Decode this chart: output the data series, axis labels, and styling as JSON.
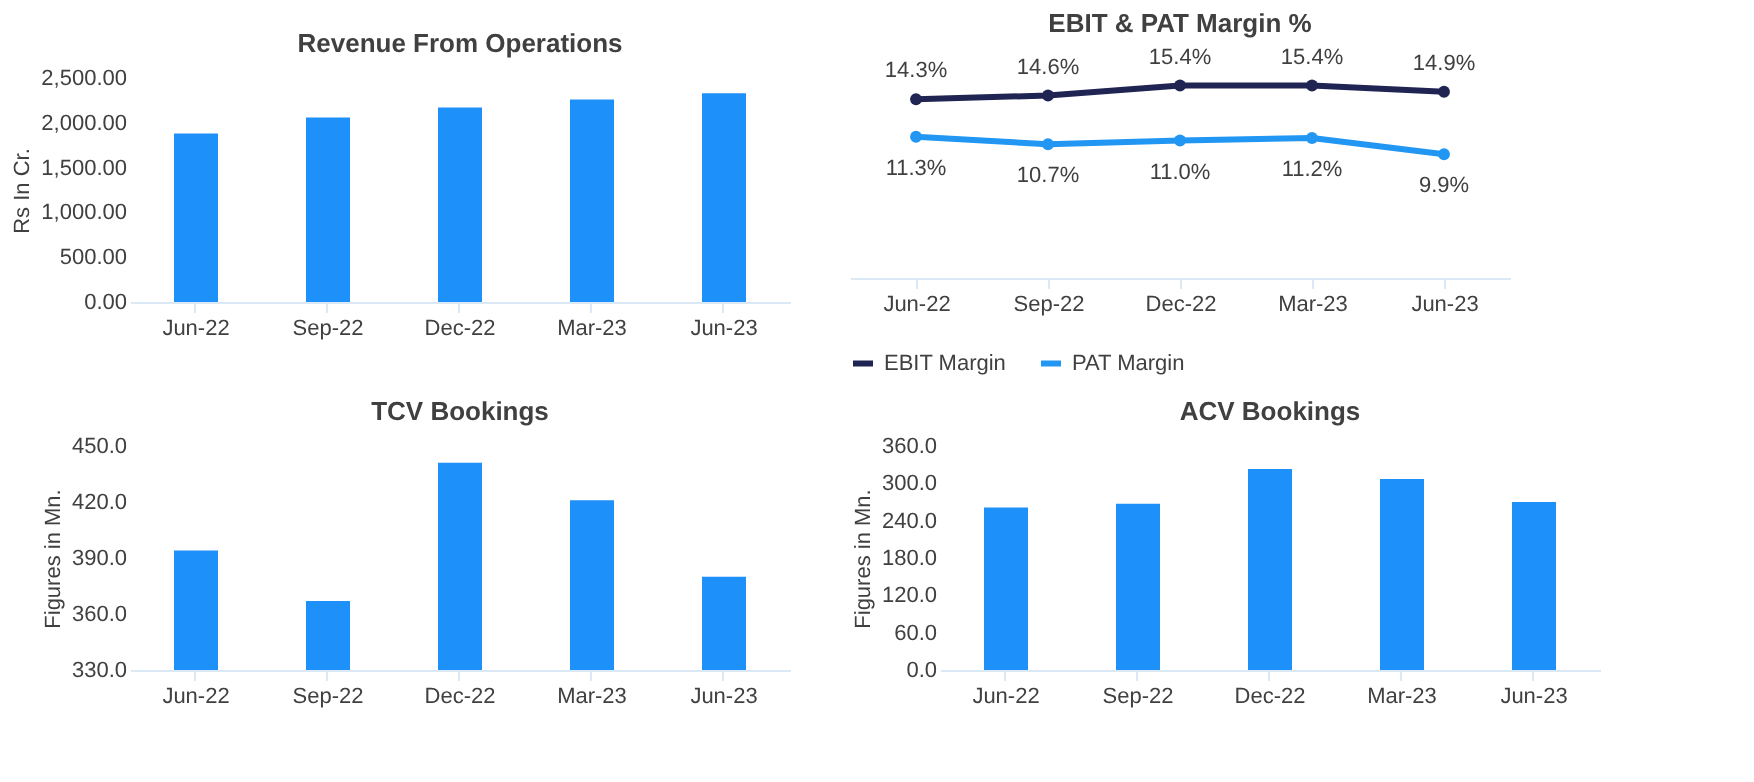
{
  "chart_data": [
    {
      "type": "bar",
      "title": "Revenue From Operations",
      "ylabel": "Rs In Cr.",
      "categories": [
        "Jun-22",
        "Sep-22",
        "Dec-22",
        "Mar-23",
        "Jun-23"
      ],
      "values": [
        1880,
        2060,
        2170,
        2260,
        2330
      ],
      "color": "#1e90fa",
      "ylim": [
        0,
        2500
      ],
      "yticks": [
        {
          "value": 0,
          "label": "0.00"
        },
        {
          "value": 500,
          "label": "500.00"
        },
        {
          "value": 1000,
          "label": "1,000.00"
        },
        {
          "value": 1500,
          "label": "1,500.00"
        },
        {
          "value": 2000,
          "label": "2,000.00"
        },
        {
          "value": 2500,
          "label": "2,500.00"
        }
      ],
      "grid": false,
      "legend": false
    },
    {
      "type": "line",
      "title": "EBIT & PAT Margin %",
      "categories": [
        "Jun-22",
        "Sep-22",
        "Dec-22",
        "Mar-23",
        "Jun-23"
      ],
      "series": [
        {
          "name": "EBIT Margin",
          "color": "#1f2452",
          "values": [
            14.3,
            14.6,
            15.4,
            15.4,
            14.9
          ],
          "value_labels": [
            "14.3%",
            "14.6%",
            "15.4%",
            "15.4%",
            "14.9%"
          ]
        },
        {
          "name": "PAT Margin",
          "color": "#2196f3",
          "values": [
            11.3,
            10.7,
            11.0,
            11.2,
            9.9
          ],
          "value_labels": [
            "11.3%",
            "10.7%",
            "11.0%",
            "11.2%",
            "9.9%"
          ]
        }
      ],
      "marker": "circle",
      "line_style": "solid",
      "legend": "bottom",
      "tick_labels": "x",
      "grid": false
    },
    {
      "type": "bar",
      "title": "TCV Bookings",
      "ylabel": "Figures in Mn.",
      "categories": [
        "Jun-22",
        "Sep-22",
        "Dec-22",
        "Mar-23",
        "Jun-23"
      ],
      "values": [
        394,
        367,
        441,
        421,
        380
      ],
      "color": "#1e90fa",
      "ylim": [
        330,
        450
      ],
      "yticks": [
        {
          "value": 330,
          "label": "330.0"
        },
        {
          "value": 360,
          "label": "360.0"
        },
        {
          "value": 390,
          "label": "390.0"
        },
        {
          "value": 420,
          "label": "420.0"
        },
        {
          "value": 450,
          "label": "450.0"
        }
      ],
      "grid": false,
      "legend": false
    },
    {
      "type": "bar",
      "title": "ACV Bookings",
      "ylabel": "Figures in Mn.",
      "categories": [
        "Jun-22",
        "Sep-22",
        "Dec-22",
        "Mar-23",
        "Jun-23"
      ],
      "values": [
        261,
        267,
        323,
        307,
        270
      ],
      "color": "#1e90fa",
      "ylim": [
        0,
        360
      ],
      "yticks": [
        {
          "value": 0,
          "label": "0.0"
        },
        {
          "value": 60,
          "label": "60.0"
        },
        {
          "value": 120,
          "label": "120.0"
        },
        {
          "value": 180,
          "label": "180.0"
        },
        {
          "value": 240,
          "label": "240.0"
        },
        {
          "value": 300,
          "label": "300.0"
        },
        {
          "value": 360,
          "label": "360.0"
        }
      ],
      "grid": false,
      "legend": false
    }
  ]
}
